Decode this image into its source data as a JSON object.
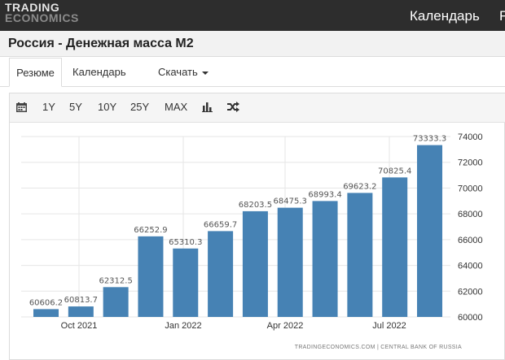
{
  "header": {
    "logo_line1": "TRADING",
    "logo_line2": "ECONOMICS",
    "nav_calendar": "Календарь",
    "nav_cut": "F"
  },
  "page": {
    "title": "Россия - Денежная масса M2"
  },
  "tabs": [
    {
      "label": "Резюме",
      "active": true
    },
    {
      "label": "Календарь",
      "active": false
    },
    {
      "label": "Скачать",
      "active": false
    }
  ],
  "toolbar": {
    "calendar_icon": "calendar-icon",
    "ranges": [
      "1Y",
      "5Y",
      "10Y",
      "25Y",
      "MAX"
    ],
    "bar_chart_icon": "bar-chart-icon",
    "shuffle_icon": "shuffle-icon"
  },
  "chart_data": {
    "type": "bar",
    "values": [
      60606.2,
      60813.7,
      62312.5,
      66252.9,
      65310.3,
      66659.7,
      68203.5,
      68475.3,
      68993.4,
      69623.2,
      70825.4,
      73333.3
    ],
    "value_labels": [
      "60606.2",
      "60813.7",
      "62312.5",
      "66252.9",
      "65310.3",
      "66659.7",
      "68203.5",
      "68475.3",
      "68993.4",
      "69623.2",
      "70825.4",
      "73333.3"
    ],
    "x_tick_labels": [
      "Oct 2021",
      "Jan 2022",
      "Apr 2022",
      "Jul 2022"
    ],
    "y_ticks": [
      60000,
      62000,
      64000,
      66000,
      68000,
      70000,
      72000,
      74000
    ],
    "ylim": [
      60000,
      74000
    ],
    "grid": true,
    "bar_color": "#4682b4",
    "source": "TRADINGECONOMICS.COM | CENTRAL BANK OF RUSSIA"
  },
  "colors": {
    "topbar": "#2d2d2d",
    "bar": "#4682b4"
  }
}
